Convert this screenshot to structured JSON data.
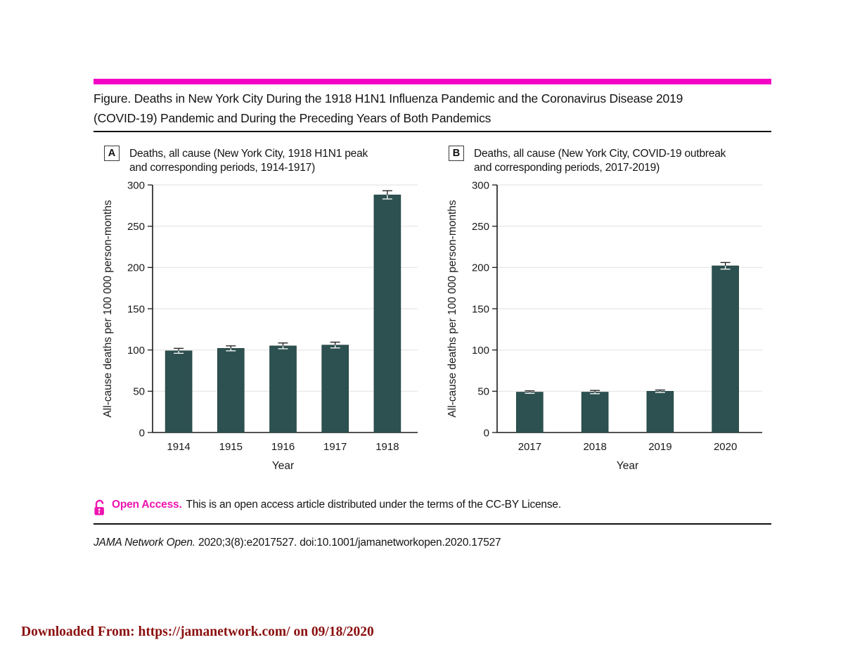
{
  "colors": {
    "accent_magenta": "#f304c4",
    "open_access_pink": "#ee14b0",
    "bar_teal": "#2d5151",
    "grid_gray": "#e5e5e5",
    "axis_black": "#1a1a1a",
    "stamp_red": "#8b0f0f"
  },
  "figure": {
    "title_line1": "Figure. Deaths in New York City During the 1918 H1N1 Influenza Pandemic and the Coronavirus Disease 2019",
    "title_line2": "(COVID-19) Pandemic and During the Preceding Years of Both Pandemics"
  },
  "chart_data": [
    {
      "type": "bar",
      "panel_label": "A",
      "title_line1": "Deaths, all cause (New York City, 1918 H1N1 peak",
      "title_line2": "and corresponding periods, 1914-1917)",
      "categories": [
        "1914",
        "1915",
        "1916",
        "1917",
        "1918"
      ],
      "values": [
        99,
        102,
        105,
        106,
        288
      ],
      "errors": [
        3,
        3,
        3.5,
        3.5,
        5
      ],
      "xlabel": "Year",
      "ylabel": "All-cause deaths per 100 000 person-months",
      "ylim": [
        0,
        300
      ],
      "ytick_step": 50,
      "grid": true,
      "legend": "none",
      "bar_color": "#2d5151"
    },
    {
      "type": "bar",
      "panel_label": "B",
      "title_line1": "Deaths, all cause (New York City, COVID-19 outbreak",
      "title_line2": "and corresponding periods, 2017-2019)",
      "categories": [
        "2017",
        "2018",
        "2019",
        "2020"
      ],
      "values": [
        49,
        49,
        50,
        202
      ],
      "errors": [
        1.5,
        2,
        1.5,
        4
      ],
      "xlabel": "Year",
      "ylabel": "All-cause deaths per 100 000 person-months",
      "ylim": [
        0,
        300
      ],
      "ytick_step": 50,
      "grid": true,
      "legend": "none",
      "bar_color": "#2d5151"
    }
  ],
  "footer": {
    "open_access_label": "Open Access.",
    "open_access_text": "This is an open access article distributed under the terms of the CC-BY License.",
    "citation_journal": "JAMA Network Open.",
    "citation_rest": " 2020;3(8):e2017527. doi:10.1001/jamanetworkopen.2020.17527"
  },
  "stamp": {
    "downloaded_text": "Downloaded From: https://jamanetwork.com/ on 09/18/2020"
  }
}
